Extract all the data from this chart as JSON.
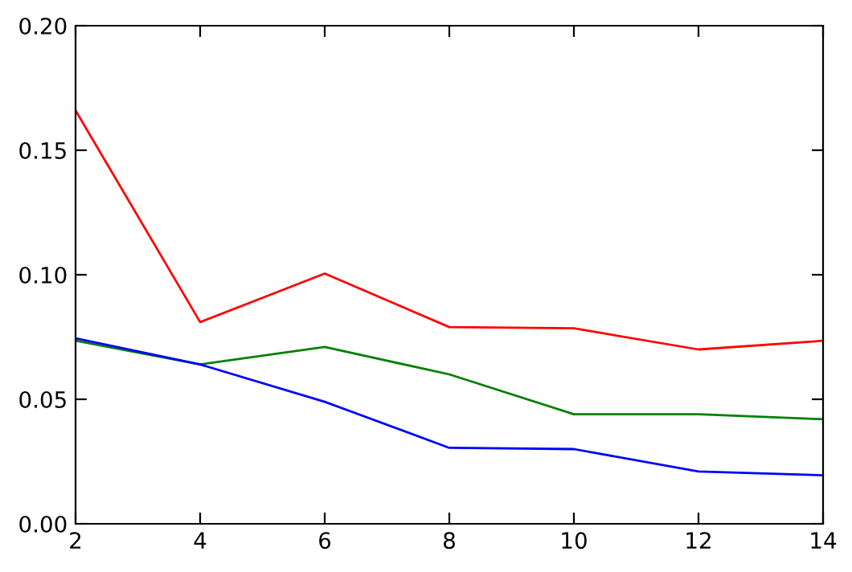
{
  "chart_data": {
    "type": "line",
    "x": [
      2,
      4,
      6,
      8,
      10,
      12,
      14
    ],
    "series": [
      {
        "color": "#ff0000",
        "values": [
          0.166,
          0.081,
          0.1005,
          0.079,
          0.0785,
          0.07,
          0.0735
        ]
      },
      {
        "color": "#008000",
        "values": [
          0.0735,
          0.064,
          0.071,
          0.06,
          0.044,
          0.044,
          0.042
        ]
      },
      {
        "color": "#0000ff",
        "values": [
          0.0745,
          0.064,
          0.049,
          0.0305,
          0.03,
          0.021,
          0.0195
        ]
      }
    ],
    "xlim": [
      2,
      14
    ],
    "xticks": [
      2,
      4,
      6,
      8,
      10,
      12,
      14
    ],
    "ylim": [
      0,
      0.2
    ],
    "yticks": [
      {
        "value": 0,
        "label": "0.00"
      },
      {
        "value": 0.05,
        "label": "0.05"
      },
      {
        "value": 0.1,
        "label": "0.10"
      },
      {
        "value": 0.15,
        "label": "0.15"
      },
      {
        "value": 0.2,
        "label": "0.20"
      }
    ],
    "grid": false,
    "legend": false
  }
}
